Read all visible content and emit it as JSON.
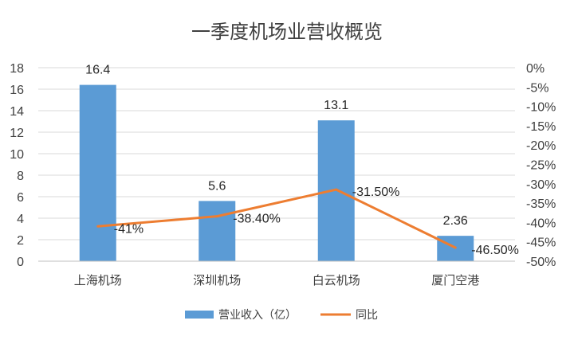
{
  "colors": {
    "bar": "#5B9BD5",
    "line": "#ED7D31",
    "grid": "#D9D9D9",
    "axis": "#BFBFBF"
  },
  "chart_data": {
    "type": "bar",
    "title": "一季度机场业营收概览",
    "categories": [
      "上海机场",
      "深圳机场",
      "白云机场",
      "厦门空港"
    ],
    "series": [
      {
        "name": "营业收入（亿）",
        "type": "bar",
        "axis": "left",
        "values": [
          16.4,
          5.6,
          13.1,
          2.36
        ],
        "labels": [
          "16.4",
          "5.6",
          "13.1",
          "2.36"
        ]
      },
      {
        "name": "同比",
        "type": "line",
        "axis": "right",
        "values": [
          -41,
          -38.4,
          -31.5,
          -46.5
        ],
        "labels": [
          "-41%",
          "-38.40%",
          "-31.50%",
          "-46.50%"
        ]
      }
    ],
    "y_left": {
      "ylim": [
        0,
        18
      ],
      "ticks": [
        "0",
        "2",
        "4",
        "6",
        "8",
        "10",
        "12",
        "14",
        "16",
        "18"
      ]
    },
    "y_right": {
      "ylim": [
        -50,
        0
      ],
      "ticks": [
        "-50%",
        "-45%",
        "-40%",
        "-35%",
        "-30%",
        "-25%",
        "-20%",
        "-15%",
        "-10%",
        "-5%",
        "0%"
      ]
    },
    "grid": true,
    "legend": "bottom"
  }
}
